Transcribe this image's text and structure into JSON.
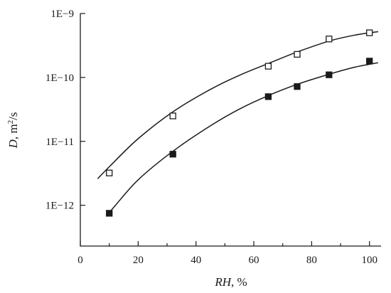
{
  "chart_data": {
    "type": "scatter",
    "title": "",
    "xlabel": {
      "italic": "RH",
      "rest": ", %"
    },
    "ylabel": {
      "italic": "D",
      "unit_base": ", m",
      "unit_sup": "2",
      "unit_tail": "/s"
    },
    "x_ticks": [
      "0",
      "20",
      "40",
      "60",
      "80",
      "100"
    ],
    "x_tick_values": [
      0,
      20,
      40,
      60,
      80,
      100
    ],
    "y_ticks": [
      "1E−12",
      "1E−11",
      "1E−10",
      "1E−9"
    ],
    "y_tick_values": [
      1e-12,
      1e-11,
      1e-10,
      1e-09
    ],
    "xlim": [
      0,
      104
    ],
    "ylim": [
      2.3e-13,
      1e-09
    ],
    "y_scale": "log",
    "grid": false,
    "legend": "none",
    "series": [
      {
        "marker": "open-square",
        "color": "#1a1a1a",
        "x": [
          10,
          32,
          65,
          75,
          86,
          100
        ],
        "y": [
          3.2e-12,
          2.5e-11,
          1.5e-10,
          2.3e-10,
          4e-10,
          5e-10
        ],
        "fit": {
          "x": [
            6,
            10,
            20,
            32,
            45,
            55,
            65,
            75,
            86,
            95,
            103
          ],
          "y": [
            2.6e-12,
            4e-12,
            1.1e-11,
            2.9e-11,
            6.5e-11,
            1.08e-10,
            1.65e-10,
            2.5e-10,
            3.7e-10,
            4.6e-10,
            5.2e-10
          ]
        }
      },
      {
        "marker": "filled-square",
        "color": "#1a1a1a",
        "x": [
          10,
          32,
          65,
          75,
          86,
          100
        ],
        "y": [
          7.5e-13,
          6.3e-12,
          5e-11,
          7.2e-11,
          1.1e-10,
          1.8e-10
        ],
        "fit": {
          "x": [
            9,
            12,
            20,
            32,
            45,
            55,
            65,
            75,
            86,
            95,
            103
          ],
          "y": [
            6.7e-13,
            9.8e-13,
            2.5e-12,
            7e-12,
            1.75e-11,
            3.2e-11,
            5.2e-11,
            7.8e-11,
            1.12e-10,
            1.45e-10,
            1.7e-10
          ]
        }
      }
    ]
  }
}
